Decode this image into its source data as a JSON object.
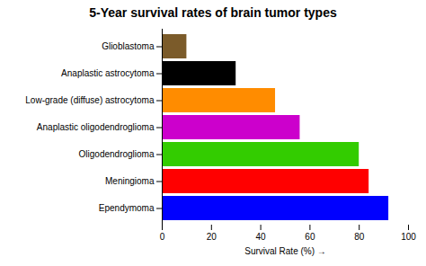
{
  "chart_data": {
    "type": "bar",
    "orientation": "horizontal",
    "title": "5-Year survival rates of brain tumor types",
    "xlabel": "Survival Rate (%)",
    "categories": [
      "Glioblastoma",
      "Anaplastic astrocytoma",
      "Low-grade (diffuse) astrocytoma",
      "Anaplastic oligodendroglioma",
      "Oligodendroglioma",
      "Meningioma",
      "Ependymoma"
    ],
    "values": [
      10,
      30,
      46,
      56,
      80,
      84,
      92
    ],
    "colors": [
      "#7B5B2A",
      "#000000",
      "#FF8C00",
      "#CC00CC",
      "#33CC00",
      "#FF0000",
      "#0000FF"
    ],
    "xlim": [
      0,
      100
    ],
    "xticks": [
      0,
      20,
      40,
      60,
      80,
      100
    ]
  }
}
